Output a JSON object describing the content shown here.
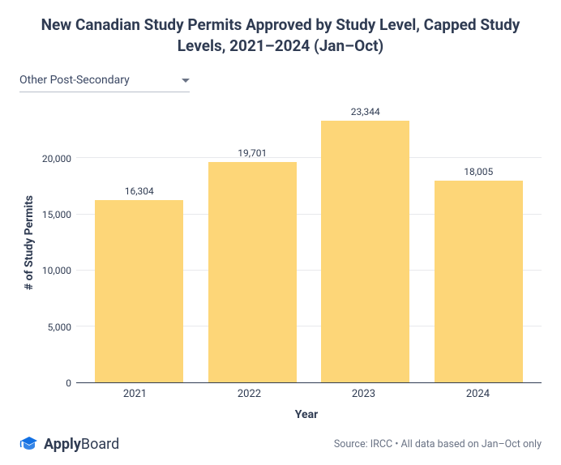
{
  "title": "New Canadian Study Permits Approved by Study Level, Capped Study Levels, 2021–2024 (Jan–Oct)",
  "dropdown": {
    "selected": "Other Post-Secondary"
  },
  "chart": {
    "type": "bar",
    "y_axis_label": "# of Study Permits",
    "x_axis_label": "Year",
    "ylim_max": 25000,
    "y_ticks": [
      {
        "value": 0,
        "label": "0"
      },
      {
        "value": 5000,
        "label": "5,000"
      },
      {
        "value": 10000,
        "label": "10,000"
      },
      {
        "value": 15000,
        "label": "15,000"
      },
      {
        "value": 20000,
        "label": "20,000"
      }
    ],
    "grid_color": "#e8e9ec",
    "axis_color": "#2f3b52",
    "background_color": "#ffffff",
    "bar_color": "#fdd678",
    "bar_width_pct": 78,
    "label_fontsize": 12,
    "axis_label_fontsize": 14,
    "data": [
      {
        "year": "2021",
        "value": 16304,
        "label": "16,304"
      },
      {
        "year": "2022",
        "value": 19701,
        "label": "19,701"
      },
      {
        "year": "2023",
        "value": 23344,
        "label": "23,344"
      },
      {
        "year": "2024",
        "value": 18005,
        "label": "18,005"
      }
    ]
  },
  "logo": {
    "icon_color": "#0d6efd",
    "text_part1": "Apply",
    "text_part2": "Board"
  },
  "source": "Source: IRCC • All data based on Jan–Oct only"
}
